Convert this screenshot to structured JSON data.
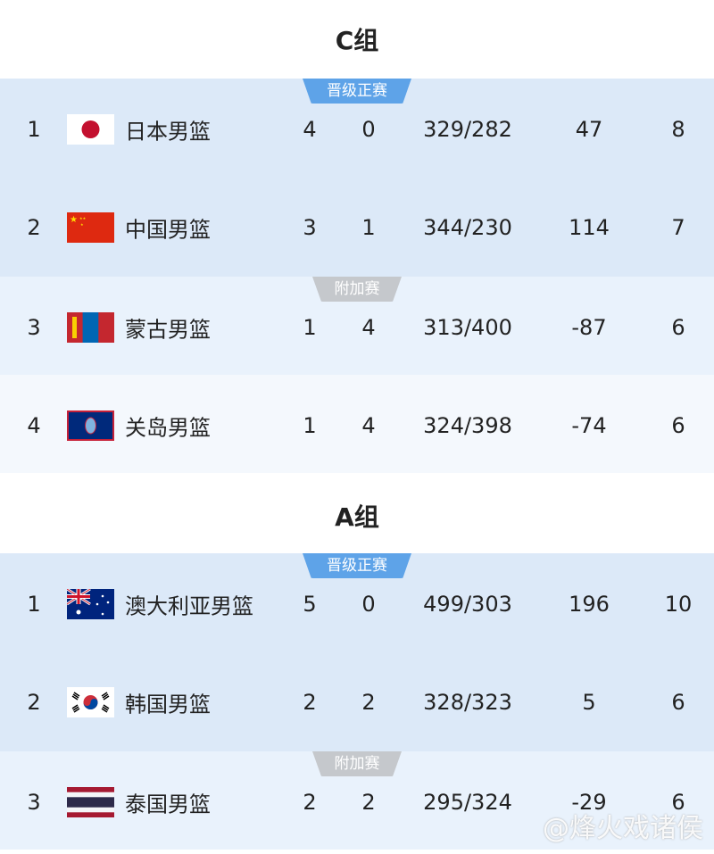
{
  "groups": [
    {
      "title": "C组",
      "rows": [
        {
          "rank": "1",
          "flag": "japan-flag-icon",
          "team": "日本男篮",
          "w": "4",
          "l": "0",
          "score": "329/282",
          "diff": "47",
          "pts": "8"
        },
        {
          "rank": "2",
          "flag": "china-flag-icon",
          "team": "中国男篮",
          "w": "3",
          "l": "1",
          "score": "344/230",
          "diff": "114",
          "pts": "7"
        },
        {
          "rank": "3",
          "flag": "mongolia-flag-icon",
          "team": "蒙古男篮",
          "w": "1",
          "l": "4",
          "score": "313/400",
          "diff": "-87",
          "pts": "6"
        },
        {
          "rank": "4",
          "flag": "guam-flag-icon",
          "team": "关岛男篮",
          "w": "1",
          "l": "4",
          "score": "324/398",
          "diff": "-74",
          "pts": "6"
        }
      ]
    },
    {
      "title": "A组",
      "rows": [
        {
          "rank": "1",
          "flag": "australia-flag-icon",
          "team": "澳大利亚男篮",
          "w": "5",
          "l": "0",
          "score": "499/303",
          "diff": "196",
          "pts": "10"
        },
        {
          "rank": "2",
          "flag": "korea-flag-icon",
          "team": "韩国男篮",
          "w": "2",
          "l": "2",
          "score": "328/323",
          "diff": "5",
          "pts": "6"
        },
        {
          "rank": "3",
          "flag": "thailand-flag-icon",
          "team": "泰国男篮",
          "w": "2",
          "l": "2",
          "score": "295/324",
          "diff": "-29",
          "pts": "6"
        }
      ]
    }
  ],
  "badges": {
    "qualified": "晋级正赛",
    "playoff": "附加赛"
  },
  "colors": {
    "qualified_badge": "#5ea3e8",
    "playoff_badge": "#c5c8cc",
    "qualified_bg": "#dce9f8"
  },
  "watermark": "@烽火戏诸侯"
}
